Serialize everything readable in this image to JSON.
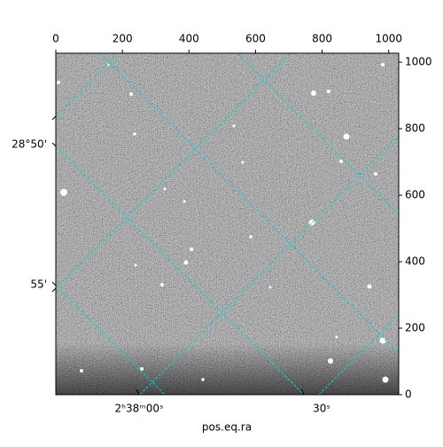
{
  "chart_data": {
    "type": "image",
    "xlabel": "pos.eq.ra",
    "xlim": [
      0,
      1030
    ],
    "xticks": [
      0,
      200,
      400,
      600,
      800,
      1000
    ],
    "ylim": [
      0,
      1027
    ],
    "yticks": [
      0,
      200,
      400,
      600,
      800,
      1000
    ],
    "world_ticks": {
      "ra": [
        "2ʰ38ᵐ00ˢ",
        "30ˢ"
      ],
      "dec": [
        "28°50'",
        "55'"
      ]
    },
    "grid_color": "#00d8d8"
  }
}
